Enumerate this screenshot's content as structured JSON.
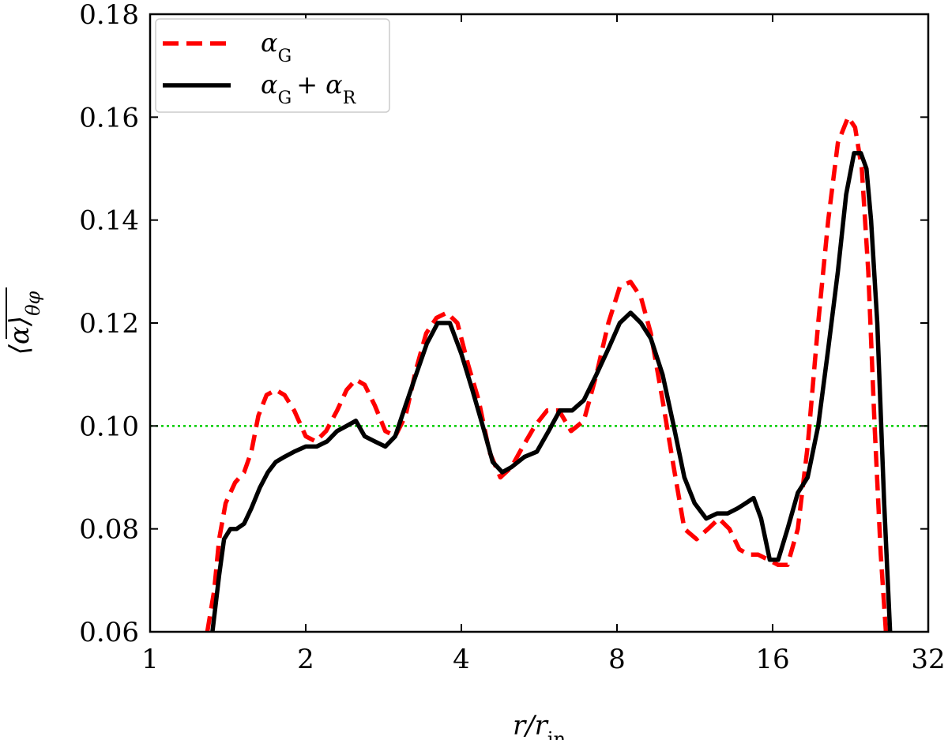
{
  "chart_data": {
    "type": "line",
    "xlabel": "r/r",
    "xlabel_sub": "in",
    "ylabel": "⟨α⟩",
    "ylabel_sub": "θφ",
    "xscale": "log2",
    "xlim": [
      1,
      32
    ],
    "ylim": [
      0.06,
      0.18
    ],
    "xticks": [
      1,
      2,
      4,
      8,
      16,
      32
    ],
    "xtick_labels": [
      "1",
      "2",
      "4",
      "8",
      "16",
      "32"
    ],
    "yticks": [
      0.06,
      0.08,
      0.1,
      0.12,
      0.14,
      0.16,
      0.18
    ],
    "ytick_labels": [
      "0.06",
      "0.08",
      "0.10",
      "0.12",
      "0.14",
      "0.16",
      "0.18"
    ],
    "legend_position": "top-left",
    "reference_line": {
      "y": 0.1,
      "color": "#00cc00",
      "style": "dotted"
    },
    "series": [
      {
        "name": "αG",
        "name_base": "α",
        "name_sub": "G",
        "color": "#ff0000",
        "style": "dashed",
        "x": [
          1.29,
          1.33,
          1.36,
          1.4,
          1.46,
          1.52,
          1.57,
          1.62,
          1.68,
          1.75,
          1.82,
          1.9,
          2.0,
          2.09,
          2.19,
          2.3,
          2.4,
          2.5,
          2.6,
          2.72,
          2.85,
          2.98,
          3.12,
          3.27,
          3.42,
          3.58,
          3.75,
          3.93,
          4.12,
          4.32,
          4.53,
          4.76,
          5.0,
          5.26,
          5.55,
          5.86,
          6.18,
          6.52,
          6.9,
          7.3,
          7.7,
          8.1,
          8.5,
          8.9,
          9.3,
          9.8,
          10.3,
          10.8,
          11.4,
          12.0,
          12.6,
          13.2,
          13.8,
          14.4,
          15.0,
          15.7,
          16.4,
          17.1,
          17.9,
          18.7,
          19.6,
          20.5,
          21.4,
          22.4,
          23.1,
          23.8,
          24.5,
          25.2,
          25.9,
          26.5
        ],
        "y": [
          0.06,
          0.068,
          0.078,
          0.085,
          0.089,
          0.091,
          0.095,
          0.102,
          0.106,
          0.107,
          0.106,
          0.103,
          0.098,
          0.097,
          0.099,
          0.103,
          0.107,
          0.109,
          0.108,
          0.104,
          0.099,
          0.098,
          0.102,
          0.111,
          0.118,
          0.121,
          0.122,
          0.12,
          0.112,
          0.105,
          0.095,
          0.09,
          0.092,
          0.096,
          0.1,
          0.103,
          0.103,
          0.099,
          0.101,
          0.11,
          0.12,
          0.127,
          0.128,
          0.125,
          0.118,
          0.105,
          0.092,
          0.08,
          0.078,
          0.08,
          0.082,
          0.08,
          0.076,
          0.075,
          0.075,
          0.074,
          0.073,
          0.073,
          0.08,
          0.096,
          0.12,
          0.14,
          0.155,
          0.16,
          0.158,
          0.15,
          0.13,
          0.1,
          0.075,
          0.06
        ]
      },
      {
        "name": "αG + αR",
        "name_base": "α",
        "name_sub": "G",
        "name_plus": "+ α",
        "name_sub2": "R",
        "color": "#000000",
        "style": "solid",
        "x": [
          1.32,
          1.36,
          1.39,
          1.43,
          1.47,
          1.52,
          1.57,
          1.63,
          1.69,
          1.75,
          1.82,
          1.9,
          2.0,
          2.1,
          2.2,
          2.3,
          2.4,
          2.5,
          2.6,
          2.72,
          2.85,
          2.98,
          3.12,
          3.27,
          3.43,
          3.6,
          3.8,
          4.0,
          4.2,
          4.4,
          4.6,
          4.8,
          5.0,
          5.3,
          5.6,
          5.9,
          6.2,
          6.55,
          6.9,
          7.3,
          7.7,
          8.1,
          8.5,
          8.9,
          9.3,
          9.8,
          10.3,
          10.8,
          11.3,
          11.9,
          12.5,
          13.1,
          13.7,
          14.2,
          14.7,
          15.2,
          15.8,
          16.4,
          17.1,
          17.9,
          18.7,
          19.6,
          20.5,
          21.4,
          22.2,
          23.0,
          23.7,
          24.3,
          24.8,
          25.5,
          26.3,
          27.0
        ],
        "y": [
          0.06,
          0.071,
          0.078,
          0.08,
          0.08,
          0.081,
          0.084,
          0.088,
          0.091,
          0.093,
          0.094,
          0.095,
          0.096,
          0.096,
          0.097,
          0.099,
          0.1,
          0.101,
          0.098,
          0.097,
          0.096,
          0.098,
          0.104,
          0.11,
          0.116,
          0.12,
          0.12,
          0.114,
          0.107,
          0.1,
          0.093,
          0.091,
          0.092,
          0.094,
          0.095,
          0.099,
          0.103,
          0.103,
          0.105,
          0.11,
          0.115,
          0.12,
          0.122,
          0.12,
          0.117,
          0.11,
          0.1,
          0.09,
          0.085,
          0.082,
          0.083,
          0.083,
          0.084,
          0.085,
          0.086,
          0.082,
          0.074,
          0.074,
          0.08,
          0.087,
          0.09,
          0.1,
          0.115,
          0.13,
          0.145,
          0.153,
          0.153,
          0.15,
          0.14,
          0.12,
          0.085,
          0.06
        ]
      }
    ]
  }
}
